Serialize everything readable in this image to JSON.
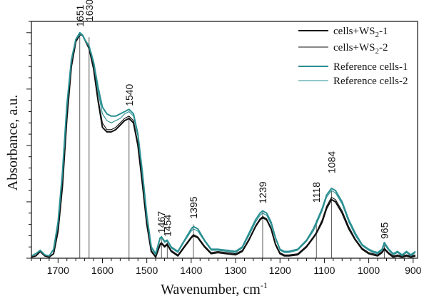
{
  "chart_data": {
    "type": "line",
    "xlabel": "Wavenumber,  cm",
    "xlabel_sup": "-1",
    "ylabel": "Absorbance, a.u.",
    "xlim": [
      1760,
      890
    ],
    "x_reversed": true,
    "ylim": [
      0,
      1.05
    ],
    "y_ticks_labeled": false,
    "x_ticks": [
      "1700",
      "1600",
      "1500",
      "1400",
      "1300",
      "1200",
      "1100",
      "1000",
      "900"
    ],
    "grid": false,
    "legend_position": "top-right",
    "peaks": [
      {
        "x": 1651,
        "label": "1651",
        "y": 1.0
      },
      {
        "x": 1630,
        "label": "1630",
        "y": 0.98
      },
      {
        "x": 1540,
        "label": "1540",
        "y": 0.63
      },
      {
        "x": 1467,
        "label": "1467",
        "y": 0.085
      },
      {
        "x": 1454,
        "label": "1454",
        "y": 0.07
      },
      {
        "x": 1395,
        "label": "1395",
        "y": 0.15
      },
      {
        "x": 1239,
        "label": "1239",
        "y": 0.21
      },
      {
        "x": 1118,
        "label": "1118",
        "y": 0.17
      },
      {
        "x": 1084,
        "label": "1084",
        "y": 0.3
      },
      {
        "x": 965,
        "label": "965",
        "y": 0.06
      }
    ],
    "series": [
      {
        "name_main": "cells+WS",
        "name_sub": "2",
        "name_suffix": "-1",
        "color": "#111111",
        "width": 2.0,
        "x": [
          1760,
          1750,
          1740,
          1730,
          1720,
          1710,
          1700,
          1690,
          1680,
          1670,
          1660,
          1651,
          1645,
          1640,
          1630,
          1620,
          1610,
          1600,
          1590,
          1580,
          1570,
          1560,
          1550,
          1540,
          1530,
          1520,
          1510,
          1500,
          1490,
          1480,
          1470,
          1467,
          1460,
          1454,
          1445,
          1430,
          1415,
          1400,
          1395,
          1385,
          1370,
          1355,
          1340,
          1320,
          1300,
          1285,
          1270,
          1255,
          1245,
          1239,
          1230,
          1220,
          1210,
          1200,
          1190,
          1180,
          1160,
          1140,
          1125,
          1118,
          1105,
          1095,
          1084,
          1075,
          1060,
          1045,
          1030,
          1015,
          1000,
          990,
          980,
          970,
          965,
          955,
          945,
          935,
          925,
          915,
          905,
          895
        ],
        "y": [
          0.005,
          0.01,
          0.03,
          0.01,
          0.005,
          0.02,
          0.12,
          0.32,
          0.62,
          0.85,
          0.96,
          0.99,
          0.99,
          0.97,
          0.93,
          0.84,
          0.7,
          0.58,
          0.56,
          0.56,
          0.57,
          0.59,
          0.61,
          0.62,
          0.6,
          0.5,
          0.33,
          0.15,
          0.03,
          0.005,
          0.06,
          0.065,
          0.05,
          0.06,
          0.03,
          0.01,
          0.05,
          0.09,
          0.1,
          0.09,
          0.05,
          0.02,
          0.025,
          0.02,
          0.015,
          0.03,
          0.08,
          0.14,
          0.17,
          0.18,
          0.17,
          0.13,
          0.06,
          0.02,
          0.01,
          0.01,
          0.015,
          0.05,
          0.09,
          0.11,
          0.16,
          0.22,
          0.26,
          0.25,
          0.2,
          0.13,
          0.08,
          0.04,
          0.02,
          0.015,
          0.01,
          0.025,
          0.04,
          0.02,
          0.005,
          0.01,
          0.005,
          0.01,
          0.005,
          0.01
        ]
      },
      {
        "name_main": "cells+WS",
        "name_sub": "2",
        "name_suffix": "-2",
        "color": "#111111",
        "width": 1.1,
        "x": [
          1760,
          1750,
          1740,
          1730,
          1720,
          1710,
          1700,
          1690,
          1680,
          1670,
          1660,
          1651,
          1645,
          1640,
          1630,
          1620,
          1610,
          1600,
          1590,
          1580,
          1570,
          1560,
          1550,
          1540,
          1530,
          1520,
          1510,
          1500,
          1490,
          1480,
          1470,
          1467,
          1460,
          1454,
          1445,
          1430,
          1415,
          1400,
          1395,
          1385,
          1370,
          1355,
          1340,
          1320,
          1300,
          1285,
          1270,
          1255,
          1245,
          1239,
          1230,
          1220,
          1210,
          1200,
          1190,
          1180,
          1160,
          1140,
          1125,
          1118,
          1105,
          1095,
          1084,
          1075,
          1060,
          1045,
          1030,
          1015,
          1000,
          990,
          980,
          970,
          965,
          955,
          945,
          935,
          925,
          915,
          905,
          895
        ],
        "y": [
          0.005,
          0.01,
          0.03,
          0.01,
          0.005,
          0.02,
          0.13,
          0.33,
          0.63,
          0.86,
          0.97,
          1.0,
          0.99,
          0.97,
          0.93,
          0.85,
          0.71,
          0.6,
          0.57,
          0.57,
          0.58,
          0.6,
          0.62,
          0.63,
          0.61,
          0.51,
          0.34,
          0.16,
          0.035,
          0.008,
          0.065,
          0.07,
          0.055,
          0.065,
          0.035,
          0.015,
          0.055,
          0.095,
          0.105,
          0.095,
          0.055,
          0.025,
          0.03,
          0.025,
          0.02,
          0.035,
          0.085,
          0.145,
          0.175,
          0.185,
          0.175,
          0.135,
          0.065,
          0.025,
          0.015,
          0.015,
          0.02,
          0.055,
          0.095,
          0.115,
          0.17,
          0.23,
          0.27,
          0.26,
          0.21,
          0.14,
          0.085,
          0.045,
          0.025,
          0.02,
          0.015,
          0.03,
          0.045,
          0.025,
          0.01,
          0.015,
          0.01,
          0.015,
          0.01,
          0.015
        ]
      },
      {
        "name_main": "Reference cells-1",
        "name_sub": "",
        "name_suffix": "",
        "color": "#2a8f92",
        "width": 2.0,
        "x": [
          1760,
          1750,
          1740,
          1730,
          1720,
          1710,
          1700,
          1690,
          1680,
          1670,
          1660,
          1651,
          1645,
          1640,
          1630,
          1620,
          1610,
          1600,
          1590,
          1580,
          1570,
          1560,
          1550,
          1540,
          1530,
          1520,
          1510,
          1500,
          1490,
          1480,
          1470,
          1467,
          1460,
          1454,
          1445,
          1430,
          1415,
          1400,
          1395,
          1385,
          1370,
          1355,
          1340,
          1320,
          1300,
          1285,
          1270,
          1255,
          1245,
          1239,
          1230,
          1220,
          1210,
          1200,
          1190,
          1180,
          1160,
          1140,
          1125,
          1118,
          1105,
          1095,
          1084,
          1075,
          1060,
          1045,
          1030,
          1015,
          1000,
          990,
          980,
          970,
          965,
          955,
          945,
          935,
          925,
          915,
          905,
          895
        ],
        "y": [
          0.01,
          0.02,
          0.035,
          0.015,
          0.01,
          0.04,
          0.16,
          0.38,
          0.68,
          0.88,
          0.97,
          1.0,
          0.99,
          0.97,
          0.94,
          0.87,
          0.76,
          0.67,
          0.64,
          0.63,
          0.63,
          0.64,
          0.65,
          0.66,
          0.64,
          0.55,
          0.38,
          0.19,
          0.05,
          0.02,
          0.09,
          0.095,
          0.075,
          0.08,
          0.05,
          0.03,
          0.08,
          0.13,
          0.14,
          0.13,
          0.08,
          0.04,
          0.04,
          0.035,
          0.03,
          0.05,
          0.11,
          0.17,
          0.2,
          0.21,
          0.2,
          0.16,
          0.09,
          0.04,
          0.03,
          0.03,
          0.04,
          0.08,
          0.13,
          0.16,
          0.22,
          0.28,
          0.31,
          0.3,
          0.25,
          0.17,
          0.11,
          0.06,
          0.04,
          0.03,
          0.025,
          0.04,
          0.07,
          0.04,
          0.02,
          0.03,
          0.015,
          0.03,
          0.015,
          0.03
        ]
      },
      {
        "name_main": "Reference cells-2",
        "name_sub": "",
        "name_suffix": "",
        "color": "#2a8f92",
        "width": 1.1,
        "x": [
          1760,
          1750,
          1740,
          1730,
          1720,
          1710,
          1700,
          1690,
          1680,
          1670,
          1660,
          1651,
          1645,
          1640,
          1630,
          1620,
          1610,
          1600,
          1590,
          1580,
          1570,
          1560,
          1550,
          1540,
          1530,
          1520,
          1510,
          1500,
          1490,
          1480,
          1470,
          1467,
          1460,
          1454,
          1445,
          1430,
          1415,
          1400,
          1395,
          1385,
          1370,
          1355,
          1340,
          1320,
          1300,
          1285,
          1270,
          1255,
          1245,
          1239,
          1230,
          1220,
          1210,
          1200,
          1190,
          1180,
          1160,
          1140,
          1125,
          1118,
          1105,
          1095,
          1084,
          1075,
          1060,
          1045,
          1030,
          1015,
          1000,
          990,
          980,
          970,
          965,
          955,
          945,
          935,
          925,
          915,
          905,
          895
        ],
        "y": [
          0.01,
          0.02,
          0.035,
          0.015,
          0.01,
          0.035,
          0.15,
          0.37,
          0.67,
          0.87,
          0.97,
          0.99,
          0.99,
          0.97,
          0.94,
          0.86,
          0.74,
          0.64,
          0.61,
          0.6,
          0.61,
          0.62,
          0.64,
          0.65,
          0.63,
          0.54,
          0.37,
          0.18,
          0.045,
          0.015,
          0.085,
          0.09,
          0.07,
          0.075,
          0.045,
          0.025,
          0.075,
          0.12,
          0.13,
          0.12,
          0.075,
          0.035,
          0.035,
          0.03,
          0.025,
          0.045,
          0.1,
          0.16,
          0.19,
          0.2,
          0.19,
          0.15,
          0.085,
          0.035,
          0.025,
          0.025,
          0.035,
          0.075,
          0.12,
          0.15,
          0.21,
          0.27,
          0.3,
          0.29,
          0.24,
          0.16,
          0.1,
          0.055,
          0.035,
          0.025,
          0.02,
          0.035,
          0.06,
          0.035,
          0.015,
          0.025,
          0.01,
          0.025,
          0.01,
          0.025
        ]
      }
    ]
  }
}
